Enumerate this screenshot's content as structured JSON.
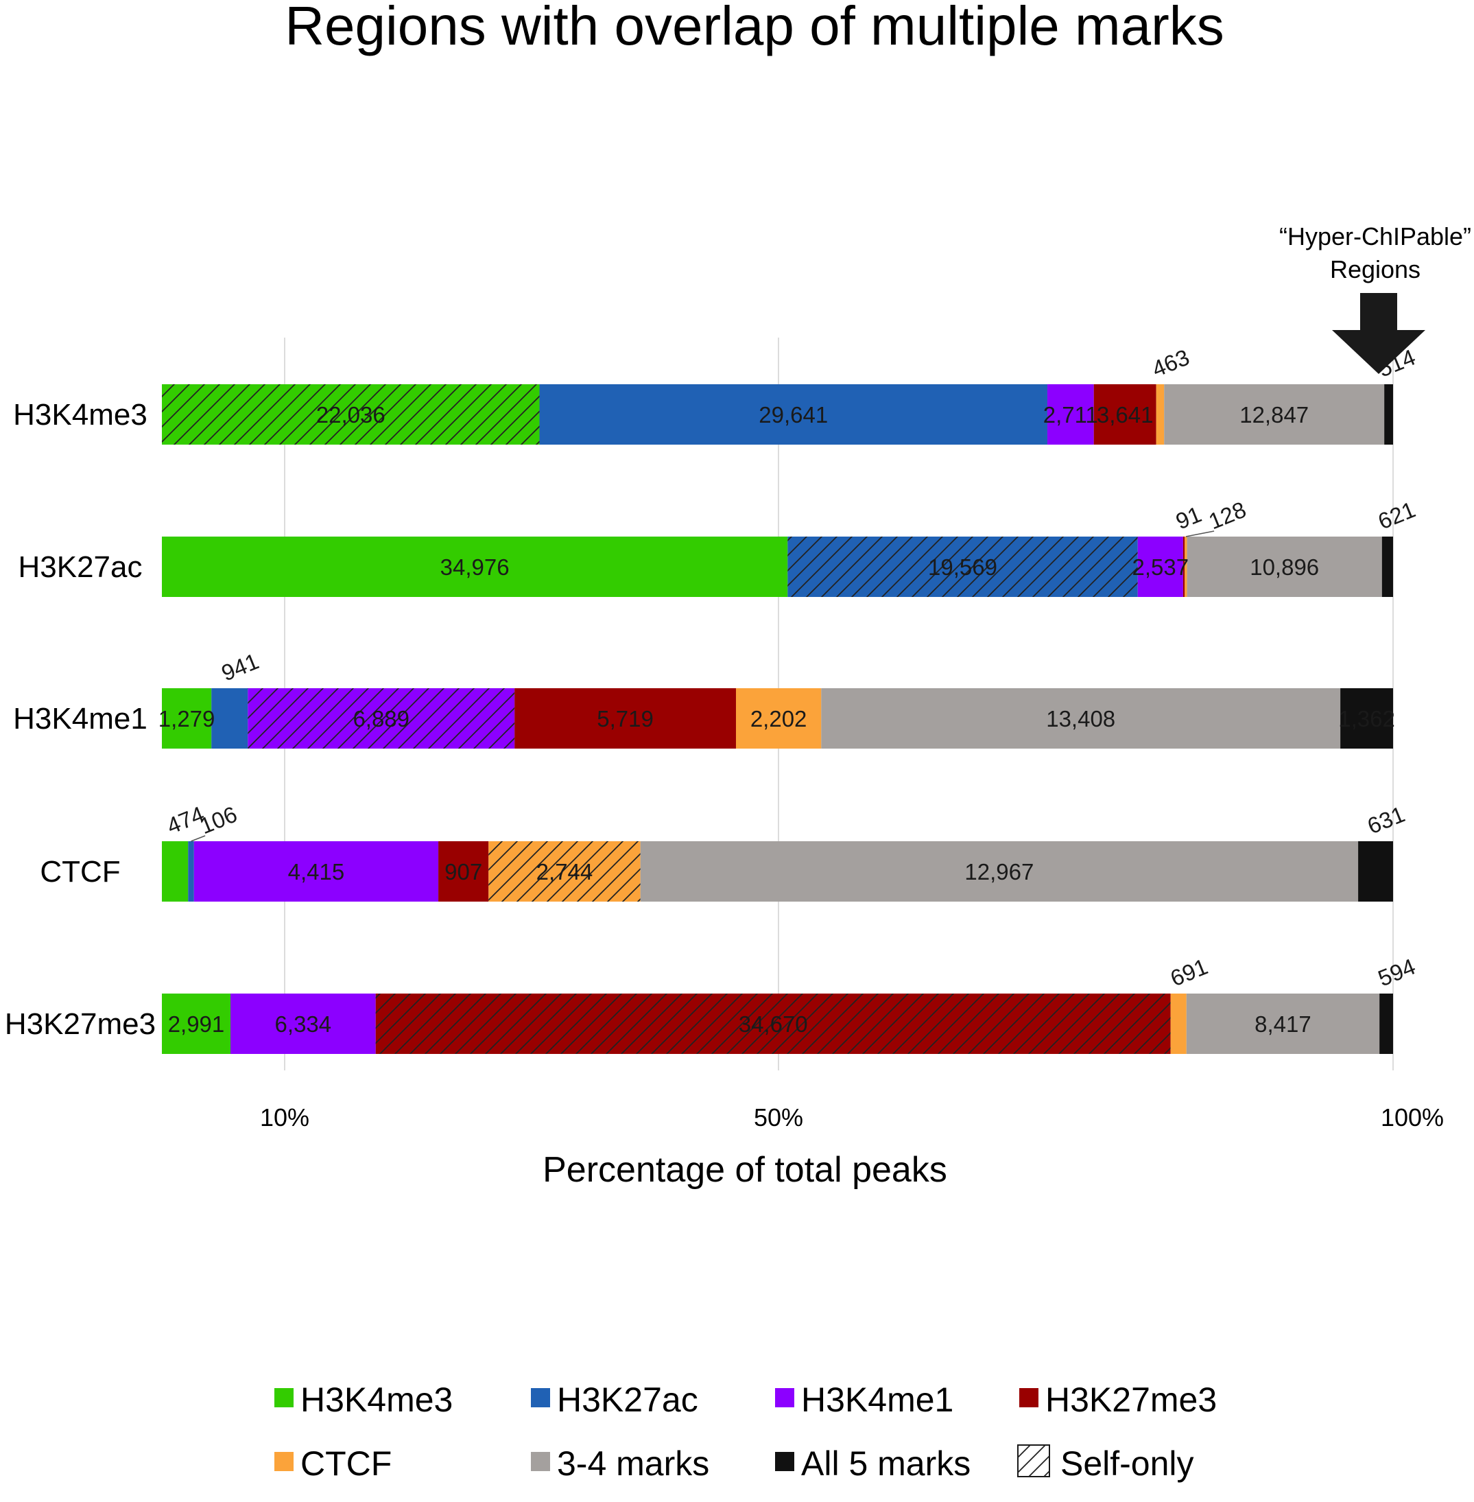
{
  "chart_data": {
    "type": "bar",
    "orientation": "horizontal",
    "stacked": true,
    "title": "Regions with overlap of multiple marks",
    "xlabel": "Percentage of total peaks",
    "xticks": [
      {
        "label": "10%"
      },
      {
        "label": "50%"
      },
      {
        "label": "100%"
      }
    ],
    "grid": true,
    "legend_position": "bottom",
    "categories": [
      "H3K4me3",
      "H3K27ac",
      "H3K4me1",
      "CTCF",
      "H3K27me3"
    ],
    "series": [
      {
        "name": "H3K4me3",
        "color": "#33cc00"
      },
      {
        "name": "H3K27ac",
        "color": "#2061b4"
      },
      {
        "name": "H3K4me1",
        "color": "#8c00ff"
      },
      {
        "name": "H3K27me3",
        "color": "#990000"
      },
      {
        "name": "CTCF",
        "color": "#fba33a"
      },
      {
        "name": "3-4 marks",
        "color": "#a4a09e"
      },
      {
        "name": "All 5 marks",
        "color": "#111111"
      }
    ],
    "rows": [
      {
        "category": "H3K4me3",
        "self_only_index": 0,
        "segments": [
          {
            "series": "H3K4me3",
            "value": 22036,
            "label": "22,036"
          },
          {
            "series": "H3K27ac",
            "value": 29641,
            "label": "29,641"
          },
          {
            "series": "H3K4me1",
            "value": 2711,
            "label": "2,711"
          },
          {
            "series": "H3K27me3",
            "value": 3641,
            "label": "3,641"
          },
          {
            "series": "CTCF",
            "value": 463,
            "label": "463"
          },
          {
            "series": "3-4 marks",
            "value": 12847,
            "label": "12,847"
          },
          {
            "series": "All 5 marks",
            "value": 514,
            "label": "514"
          }
        ]
      },
      {
        "category": "H3K27ac",
        "self_only_index": 1,
        "segments": [
          {
            "series": "H3K4me3",
            "value": 34976,
            "label": "34,976"
          },
          {
            "series": "H3K27ac",
            "value": 19569,
            "label": "19,569"
          },
          {
            "series": "H3K4me1",
            "value": 2537,
            "label": "2,537"
          },
          {
            "series": "H3K27me3",
            "value": 91,
            "label": "91"
          },
          {
            "series": "CTCF",
            "value": 128,
            "label": "128"
          },
          {
            "series": "3-4 marks",
            "value": 10896,
            "label": "10,896"
          },
          {
            "series": "All 5 marks",
            "value": 621,
            "label": "621"
          }
        ]
      },
      {
        "category": "H3K4me1",
        "self_only_index": 2,
        "segments": [
          {
            "series": "H3K4me3",
            "value": 1279,
            "label": "1,279"
          },
          {
            "series": "H3K27ac",
            "value": 941,
            "label": "941"
          },
          {
            "series": "H3K4me1",
            "value": 6889,
            "label": "6,889"
          },
          {
            "series": "H3K27me3",
            "value": 5719,
            "label": "5,719"
          },
          {
            "series": "CTCF",
            "value": 2202,
            "label": "2,202"
          },
          {
            "series": "3-4 marks",
            "value": 13408,
            "label": "13,408"
          },
          {
            "series": "All 5 marks",
            "value": 1362,
            "label": "1,362"
          }
        ]
      },
      {
        "category": "CTCF",
        "self_only_index": 4,
        "segments": [
          {
            "series": "H3K4me3",
            "value": 474,
            "label": "474"
          },
          {
            "series": "H3K27ac",
            "value": 106,
            "label": "106"
          },
          {
            "series": "H3K4me1",
            "value": 4415,
            "label": "4,415"
          },
          {
            "series": "H3K27me3",
            "value": 907,
            "label": "907"
          },
          {
            "series": "CTCF",
            "value": 2744,
            "label": "2,744"
          },
          {
            "series": "3-4 marks",
            "value": 12967,
            "label": "12,967"
          },
          {
            "series": "All 5 marks",
            "value": 631,
            "label": "631"
          }
        ]
      },
      {
        "category": "H3K27me3",
        "self_only_index": 3,
        "segments": [
          {
            "series": "H3K4me3",
            "value": 2991,
            "label": "2,991"
          },
          {
            "series": "H3K4me1",
            "value": 6334,
            "label": "6,334"
          },
          {
            "series": "H3K27me3",
            "value": 34670,
            "label": "34,670"
          },
          {
            "series": "CTCF",
            "value": 691,
            "label": "691"
          },
          {
            "series": "3-4 marks",
            "value": 8417,
            "label": "8,417"
          },
          {
            "series": "All 5 marks",
            "value": 594,
            "label": "594"
          }
        ]
      }
    ],
    "legend": [
      {
        "label": "H3K4me3",
        "color": "#33cc00"
      },
      {
        "label": "H3K27ac",
        "color": "#2061b4"
      },
      {
        "label": "H3K4me1",
        "color": "#8c00ff"
      },
      {
        "label": "H3K27me3",
        "color": "#990000"
      },
      {
        "label": "CTCF",
        "color": "#fba33a"
      },
      {
        "label": "3-4 marks",
        "color": "#a4a09e"
      },
      {
        "label": "All 5 marks",
        "color": "#111111"
      },
      {
        "label": "Self-only",
        "pattern": "hatch"
      }
    ],
    "annotation": {
      "lines": [
        "“Hyper-ChIPable”",
        "Regions"
      ],
      "icon": "down-arrow-icon",
      "points_to": "All 5 marks"
    }
  }
}
